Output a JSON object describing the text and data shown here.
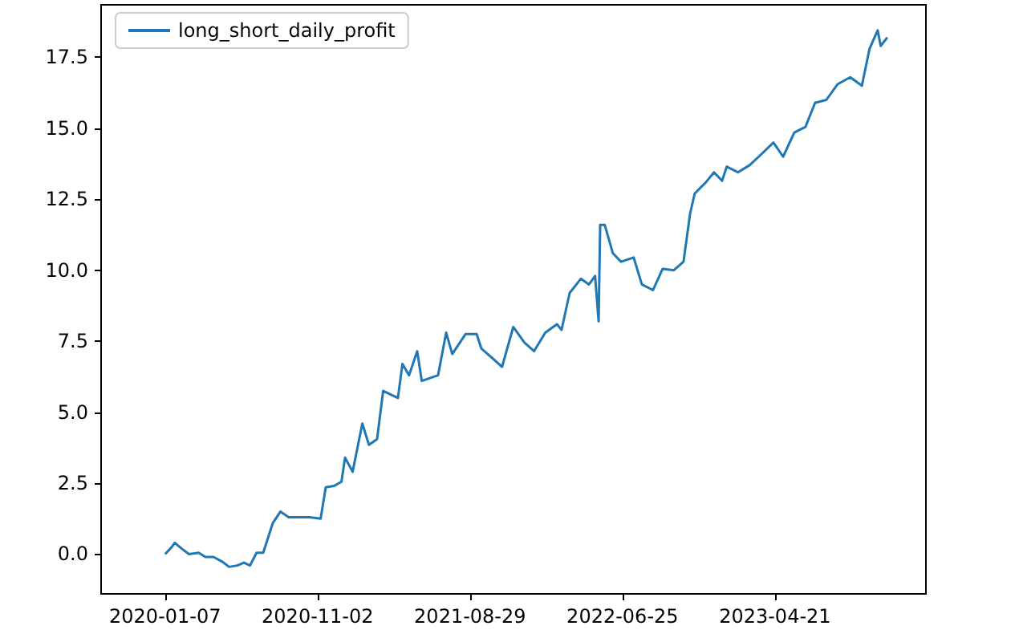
{
  "chart_data": {
    "type": "line",
    "legend": "top left",
    "grid": false,
    "marker": "none",
    "line_style": "solid",
    "xlim": [
      "2019-09-03",
      "2024-02-12"
    ],
    "xticks": [
      "2020-01-07",
      "2020-11-02",
      "2021-08-29",
      "2022-06-25",
      "2023-04-21"
    ],
    "ylim": [
      -1.4,
      19.35
    ],
    "yticks": [
      {
        "value": 0,
        "label": "0.0"
      },
      {
        "value": 2.5,
        "label": "2.5"
      },
      {
        "value": 5,
        "label": "5.0"
      },
      {
        "value": 7.5,
        "label": "7.5"
      },
      {
        "value": 10,
        "label": "10.0"
      },
      {
        "value": 12.5,
        "label": "12.5"
      },
      {
        "value": 15,
        "label": "15.0"
      },
      {
        "value": 17.5,
        "label": "17.5"
      }
    ],
    "x": [
      "2020-01-07",
      "2020-01-20",
      "2020-01-26",
      "2020-02-08",
      "2020-02-23",
      "2020-03-13",
      "2020-03-26",
      "2020-04-11",
      "2020-04-27",
      "2020-05-12",
      "2020-05-28",
      "2020-06-10",
      "2020-06-22",
      "2020-07-05",
      "2020-07-18",
      "2020-08-06",
      "2020-08-21",
      "2020-09-06",
      "2020-10-17",
      "2020-11-08",
      "2020-11-18",
      "2020-12-04",
      "2020-12-19",
      "2020-12-26",
      "2021-01-10",
      "2021-01-29",
      "2021-02-11",
      "2021-02-27",
      "2021-03-11",
      "2021-04-09",
      "2021-04-18",
      "2021-05-01",
      "2021-05-17",
      "2021-05-26",
      "2021-06-27",
      "2021-07-13",
      "2021-07-25",
      "2021-08-20",
      "2021-09-11",
      "2021-09-20",
      "2021-10-12",
      "2021-10-31",
      "2021-11-22",
      "2021-12-14",
      "2022-01-02",
      "2022-01-24",
      "2022-02-16",
      "2022-02-25",
      "2022-03-13",
      "2022-04-04",
      "2022-04-20",
      "2022-05-02",
      "2022-05-09",
      "2022-05-12",
      "2022-05-21",
      "2022-06-06",
      "2022-06-22",
      "2022-07-17",
      "2022-08-02",
      "2022-08-24",
      "2022-09-12",
      "2022-10-04",
      "2022-10-23",
      "2022-11-05",
      "2022-11-14",
      "2022-12-06",
      "2022-12-22",
      "2023-01-07",
      "2023-01-16",
      "2023-02-07",
      "2023-03-02",
      "2023-03-20",
      "2023-04-18",
      "2023-05-07",
      "2023-05-29",
      "2023-06-20",
      "2023-07-09",
      "2023-07-31",
      "2023-08-22",
      "2023-09-16",
      "2023-10-09",
      "2023-10-24",
      "2023-11-09",
      "2023-11-15",
      "2023-11-28"
    ],
    "series": [
      {
        "name": "long_short_daily_profit",
        "color": "#1f77b4",
        "values": [
          0.0,
          0.25,
          0.4,
          0.2,
          0.0,
          0.05,
          -0.1,
          -0.1,
          -0.25,
          -0.45,
          -0.4,
          -0.3,
          -0.4,
          0.05,
          0.05,
          1.1,
          1.5,
          1.3,
          1.3,
          1.25,
          2.35,
          2.4,
          2.55,
          3.4,
          2.9,
          4.6,
          3.85,
          4.05,
          5.75,
          5.5,
          6.7,
          6.3,
          7.15,
          6.1,
          6.3,
          7.8,
          7.05,
          7.75,
          7.75,
          7.25,
          6.9,
          6.6,
          8.0,
          7.45,
          7.15,
          7.8,
          8.1,
          7.9,
          9.2,
          9.7,
          9.5,
          9.8,
          8.2,
          11.6,
          11.6,
          10.6,
          10.3,
          10.45,
          9.5,
          9.3,
          10.05,
          10.0,
          10.3,
          12.0,
          12.7,
          13.1,
          13.45,
          13.15,
          13.65,
          13.45,
          13.7,
          14.0,
          14.5,
          14.0,
          14.85,
          15.05,
          15.9,
          16.0,
          16.55,
          16.8,
          16.5,
          17.8,
          18.45,
          17.9,
          18.2
        ]
      }
    ]
  }
}
